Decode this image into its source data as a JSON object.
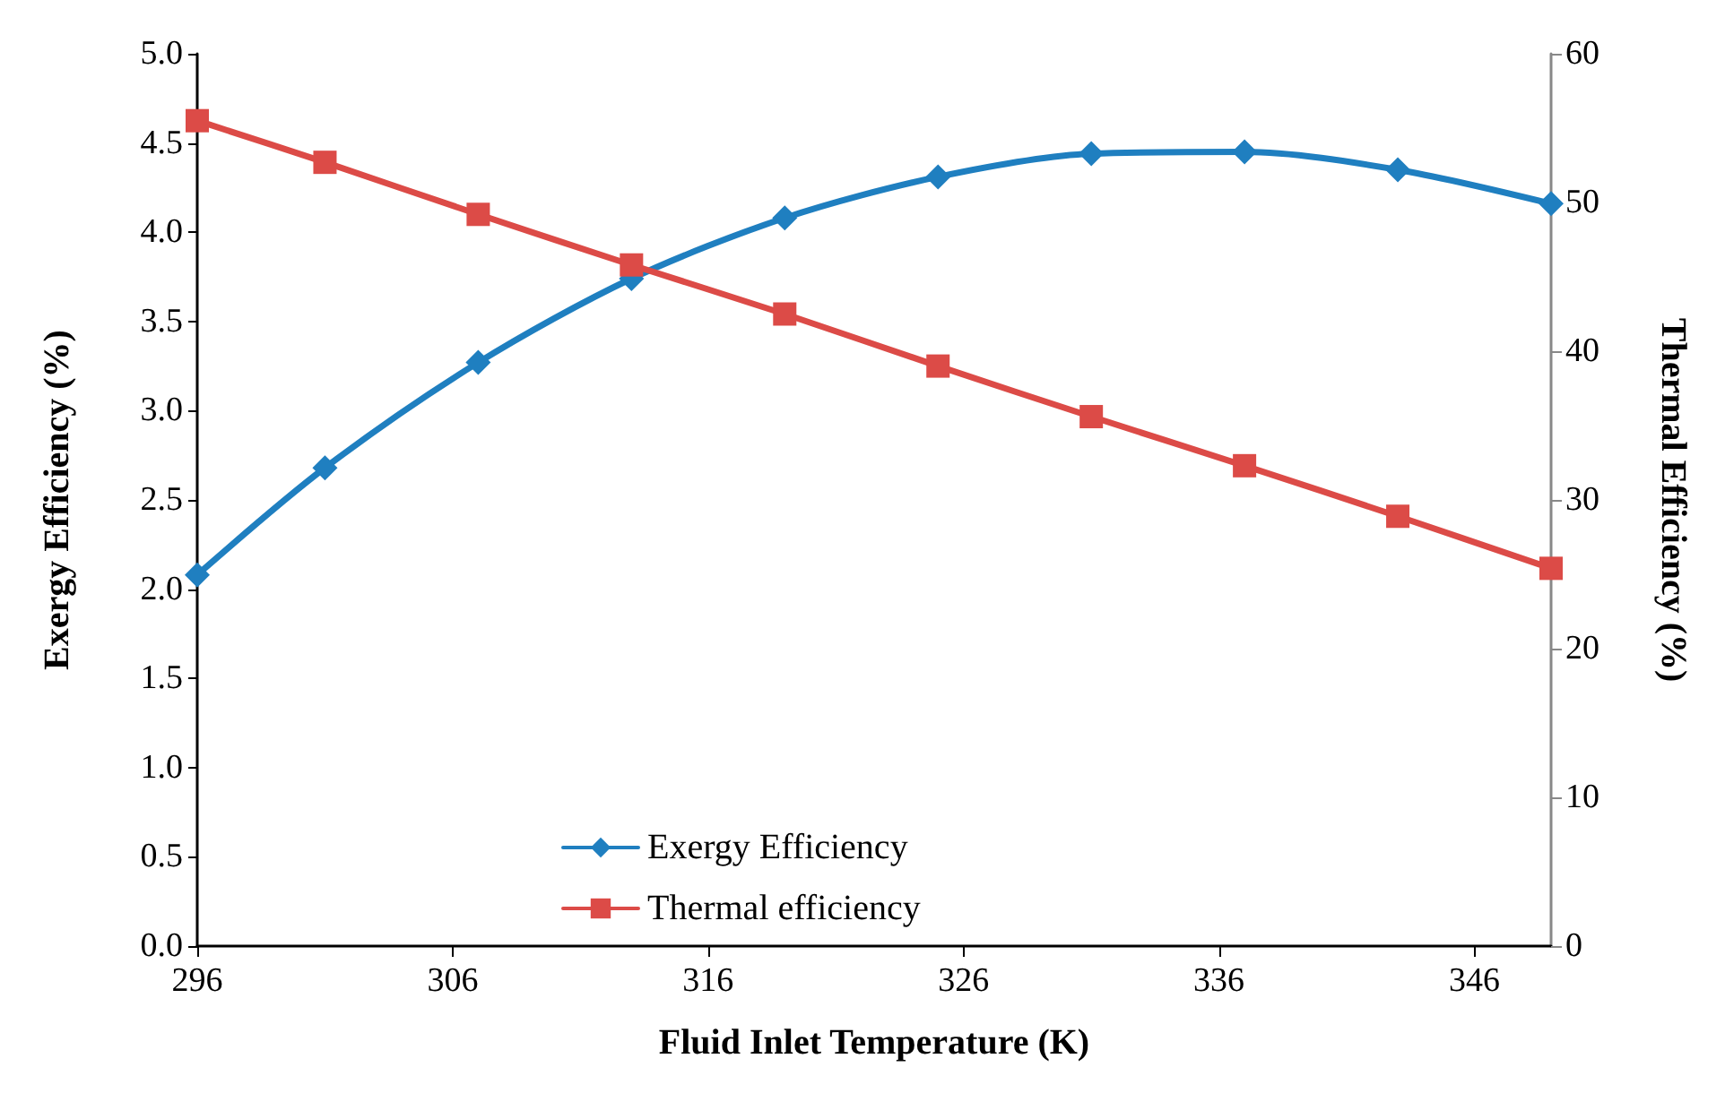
{
  "chart_data": {
    "type": "line",
    "xlabel": "Fluid Inlet Temperature (K)",
    "ylabel": "Exergy Efficiency (%)",
    "y2label": "Thermal Efficiency (%)",
    "x": [
      296,
      301,
      307,
      313,
      319,
      325,
      331,
      337,
      343,
      349
    ],
    "series": [
      {
        "name": "Exergy Efficiency",
        "color": "#1f7fc0",
        "marker": "diamond",
        "values": [
          2.08,
          2.68,
          3.27,
          3.74,
          4.08,
          4.31,
          4.44,
          4.45,
          4.35,
          4.16
        ]
      },
      {
        "name": "Thermal efficiency",
        "color": "#dc4b47",
        "marker": "square",
        "axis": "y2",
        "values": [
          55.5,
          52.7,
          49.2,
          45.8,
          42.5,
          39.0,
          35.6,
          32.3,
          28.9,
          25.4
        ]
      }
    ],
    "xlim": [
      296,
      349
    ],
    "xticks": [
      296,
      306,
      316,
      326,
      336,
      346
    ],
    "ylim": [
      0,
      5
    ],
    "yticks": [
      {
        "value": 0,
        "label": "0.0"
      },
      0.5,
      {
        "value": 1,
        "label": "1.0"
      },
      1.5,
      {
        "value": 2,
        "label": "2.0"
      },
      2.5,
      {
        "value": 3,
        "label": "3.0"
      },
      3.5,
      {
        "value": 4,
        "label": "4.0"
      },
      4.5,
      {
        "value": 5,
        "label": "5.0"
      }
    ],
    "y2lim": [
      0,
      60
    ],
    "y2ticks": [
      0,
      10,
      20,
      30,
      40,
      50,
      60
    ],
    "grid": false,
    "legend": "bottom"
  }
}
